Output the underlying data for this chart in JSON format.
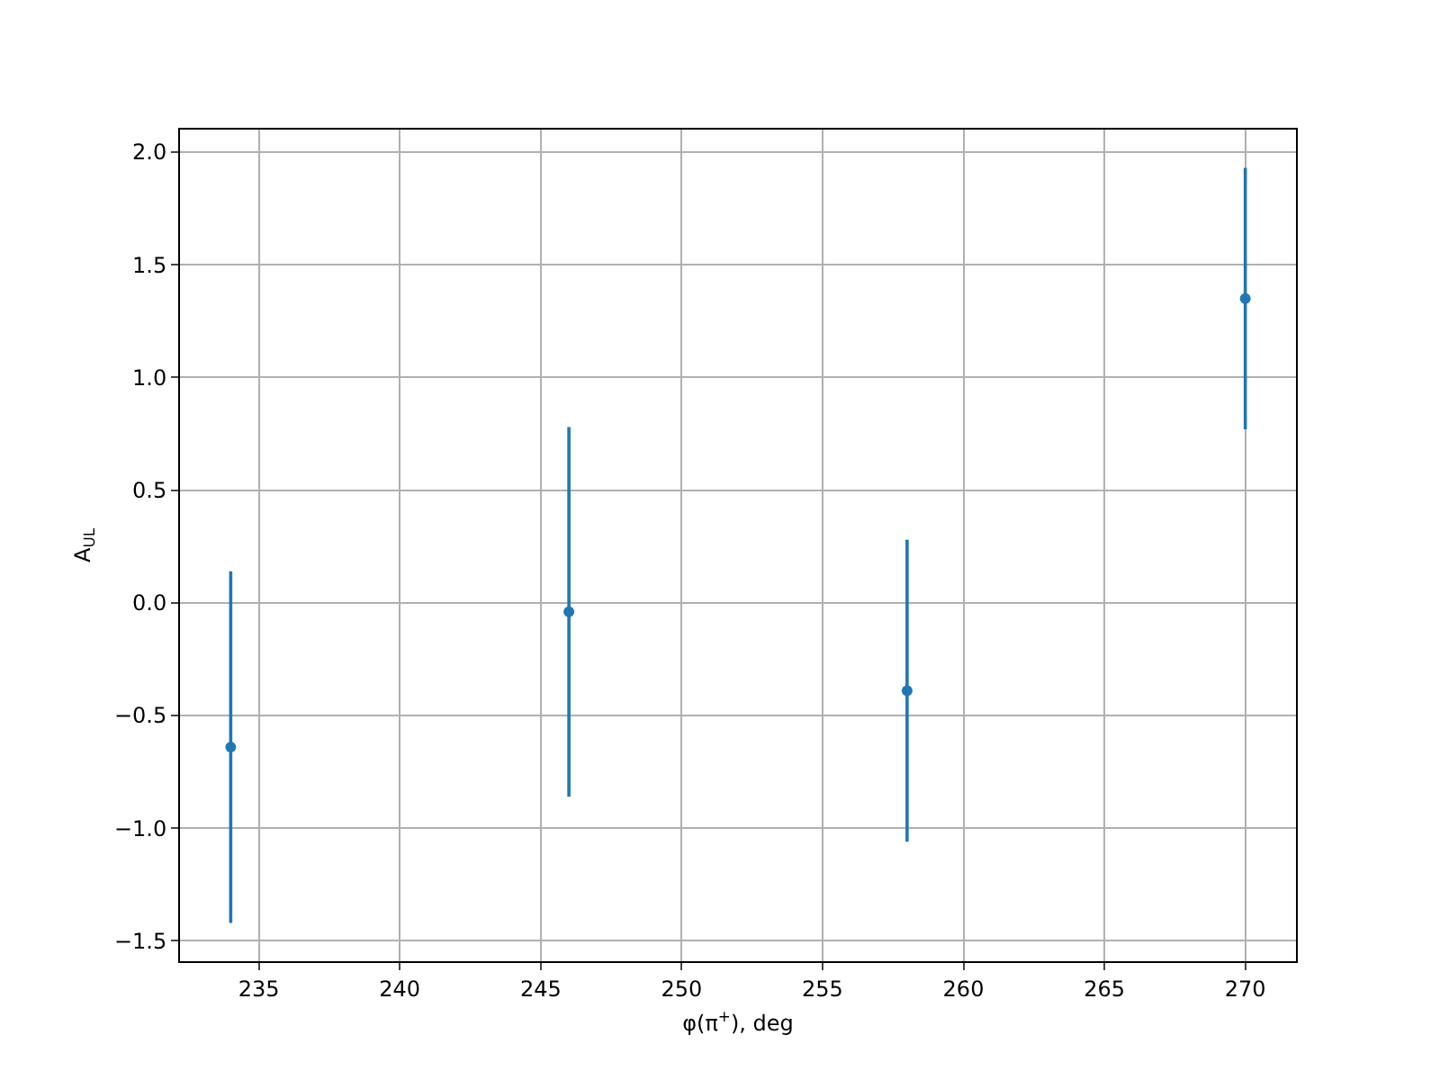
{
  "chart_data": {
    "type": "scatter",
    "xlabel": "φ(π$^{+}$), deg",
    "ylabel": "A$_{UL}$",
    "x": [
      234,
      246,
      258,
      270
    ],
    "series": [
      {
        "color": "#1f77b4",
        "values": [
          -0.64,
          -0.04,
          -0.39,
          1.35
        ],
        "errors": [
          0.78,
          0.82,
          0.67,
          0.58
        ]
      }
    ],
    "xlim": [
      232.2,
      271.8
    ],
    "ylim": [
      -1.59,
      2.1
    ],
    "xticks": [
      235,
      240,
      245,
      250,
      255,
      260,
      265,
      270
    ],
    "yticks": [
      {
        "value": -1.5,
        "label": "−1.5"
      },
      {
        "value": -1,
        "label": "−1.0"
      },
      {
        "value": -0.5,
        "label": "−0.5"
      },
      {
        "value": 0,
        "label": "0.0"
      },
      {
        "value": 0.5,
        "label": "0.5"
      },
      {
        "value": 1,
        "label": "1.0"
      },
      {
        "value": 1.5,
        "label": "1.5"
      },
      {
        "value": 2,
        "label": "2.0"
      }
    ],
    "grid": true,
    "marker": "circle"
  }
}
